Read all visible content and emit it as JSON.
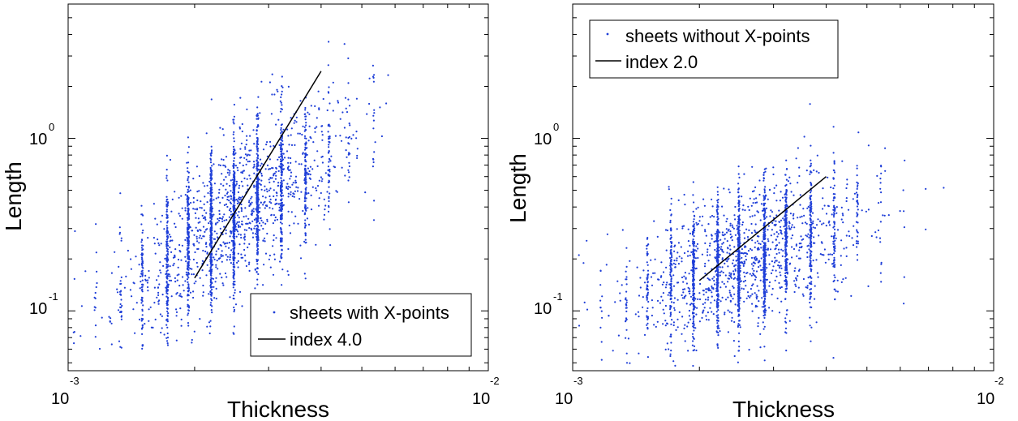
{
  "chart_data": [
    {
      "type": "scatter",
      "xscale": "log",
      "yscale": "log",
      "xlim": [
        0.001,
        0.01
      ],
      "ylim": [
        0.045,
        6.0
      ],
      "xlabel": "Thickness",
      "ylabel": "Length",
      "xticks": [
        {
          "base": "10",
          "exp": "-3"
        },
        {
          "base": "10",
          "exp": "-2"
        }
      ],
      "yticks": [
        {
          "value": 1,
          "base": "10",
          "exp": "0"
        },
        {
          "value": 0.1,
          "base": "10",
          "exp": "-1"
        }
      ],
      "legend": {
        "location": "bottom-right",
        "scatter_label": "sheets with X-points",
        "line_label": "index 4.0"
      },
      "series": [
        {
          "name": "sheets with X-points",
          "kind": "scatter",
          "color": "#1f3fd8",
          "n_points": 2600,
          "x_center": 0.00245,
          "x_log_sigma": 0.13,
          "x_range": [
            0.00103,
            0.006
          ],
          "y_slope": 1.6,
          "y_center": 0.35,
          "y_log_sigma": 0.23,
          "y_range": [
            0.06,
            3.7
          ]
        },
        {
          "name": "index 4.0",
          "kind": "line",
          "color": "#000000",
          "x": [
            0.002,
            0.004
          ],
          "y": [
            0.155,
            2.45
          ]
        }
      ]
    },
    {
      "type": "scatter",
      "xscale": "log",
      "yscale": "log",
      "xlim": [
        0.001,
        0.01
      ],
      "ylim": [
        0.045,
        6.0
      ],
      "xlabel": "Thickness",
      "ylabel": "Length",
      "xticks": [
        {
          "base": "10",
          "exp": "-3"
        },
        {
          "base": "10",
          "exp": "-2"
        }
      ],
      "yticks": [
        {
          "value": 1,
          "base": "10",
          "exp": "0"
        },
        {
          "value": 0.1,
          "base": "10",
          "exp": "-1"
        }
      ],
      "legend": {
        "location": "top-left",
        "scatter_label": "sheets without X-points",
        "line_label": "index 2.0"
      },
      "series": [
        {
          "name": "sheets without X-points",
          "kind": "scatter",
          "color": "#1f3fd8",
          "n_points": 2600,
          "x_center": 0.0026,
          "x_log_sigma": 0.13,
          "x_range": [
            0.00103,
            0.0082
          ],
          "y_slope": 0.8,
          "y_center": 0.2,
          "y_log_sigma": 0.2,
          "y_range": [
            0.048,
            1.7
          ]
        },
        {
          "name": "index 2.0",
          "kind": "line",
          "color": "#000000",
          "x": [
            0.002,
            0.004
          ],
          "y": [
            0.15,
            0.6
          ]
        }
      ]
    }
  ]
}
